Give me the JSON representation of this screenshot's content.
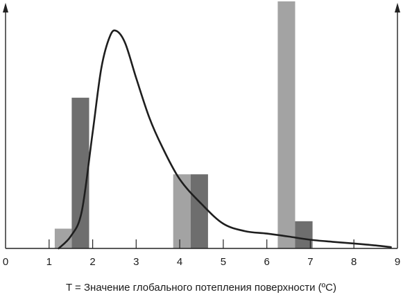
{
  "chart_data": {
    "type": "bar",
    "title": "",
    "xlabel": "T = Значение глобального потепления поверхности (ºC)",
    "ylabel": "",
    "xlim": [
      0,
      9
    ],
    "ylim": [
      0,
      1
    ],
    "x_ticks": [
      "0",
      "1",
      "2",
      "3",
      "4",
      "5",
      "6",
      "7",
      "8",
      "9"
    ],
    "y_ticks": [
      "0"
    ],
    "bars": [
      {
        "series": "light",
        "x_start": 1.13,
        "x_end": 1.52,
        "value": 0.08
      },
      {
        "series": "dark",
        "x_start": 1.52,
        "x_end": 1.92,
        "value": 0.61
      },
      {
        "series": "light",
        "x_start": 3.85,
        "x_end": 4.25,
        "value": 0.3
      },
      {
        "series": "dark",
        "x_start": 4.25,
        "x_end": 4.65,
        "value": 0.3
      },
      {
        "series": "light",
        "x_start": 6.25,
        "x_end": 6.65,
        "value": 1.0
      },
      {
        "series": "dark",
        "x_start": 6.65,
        "x_end": 7.05,
        "value": 0.11
      }
    ],
    "curve": [
      [
        1.22,
        0.0
      ],
      [
        1.5,
        0.05
      ],
      [
        1.75,
        0.15
      ],
      [
        2.0,
        0.47
      ],
      [
        2.2,
        0.73
      ],
      [
        2.4,
        0.86
      ],
      [
        2.55,
        0.88
      ],
      [
        2.75,
        0.83
      ],
      [
        3.0,
        0.69
      ],
      [
        3.3,
        0.53
      ],
      [
        3.6,
        0.41
      ],
      [
        4.0,
        0.28
      ],
      [
        4.5,
        0.18
      ],
      [
        5.0,
        0.1
      ],
      [
        5.5,
        0.07
      ],
      [
        6.0,
        0.06
      ],
      [
        6.5,
        0.048
      ],
      [
        7.0,
        0.035
      ],
      [
        7.5,
        0.027
      ],
      [
        8.0,
        0.02
      ],
      [
        8.5,
        0.012
      ],
      [
        8.85,
        0.005
      ]
    ],
    "colors": {
      "light": "#a3a3a3",
      "dark": "#6e6e6e",
      "curve": "#1e1e1e",
      "axis": "#222222"
    },
    "arrows": "top of both y-axes",
    "grid": false,
    "legend": "none"
  }
}
